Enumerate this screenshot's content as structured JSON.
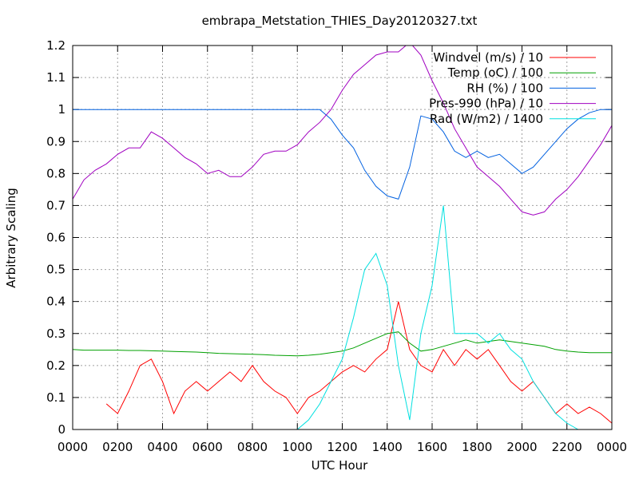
{
  "chart_data": {
    "type": "line",
    "title": "embrapa_Metstation_THIES_Day20120327.txt",
    "x_label": "UTC Hour",
    "y_label": "Arbitrary Scaling",
    "xlim": [
      0,
      24
    ],
    "ylim": [
      0,
      1.2
    ],
    "xticks": [
      {
        "value": 0,
        "label": "0000"
      },
      {
        "value": 2,
        "label": "0200"
      },
      {
        "value": 4,
        "label": "0400"
      },
      {
        "value": 6,
        "label": "0600"
      },
      {
        "value": 8,
        "label": "0800"
      },
      {
        "value": 10,
        "label": "1000"
      },
      {
        "value": 12,
        "label": "1200"
      },
      {
        "value": 14,
        "label": "1400"
      },
      {
        "value": 16,
        "label": "1600"
      },
      {
        "value": 18,
        "label": "1800"
      },
      {
        "value": 20,
        "label": "2000"
      },
      {
        "value": 22,
        "label": "2200"
      },
      {
        "value": 24,
        "label": "0000"
      }
    ],
    "yticks": [
      0,
      0.1,
      0.2,
      0.3,
      0.4,
      0.5,
      0.6,
      0.7,
      0.8,
      0.9,
      1,
      1.1,
      1.2
    ],
    "grid": true,
    "legend": "top-right",
    "x": [
      0,
      0.5,
      1,
      1.5,
      2,
      2.5,
      3,
      3.5,
      4,
      4.5,
      5,
      5.5,
      6,
      6.5,
      7,
      7.5,
      8,
      8.5,
      9,
      9.5,
      10,
      10.5,
      11,
      11.5,
      12,
      12.5,
      13,
      13.5,
      14,
      14.5,
      15,
      15.5,
      16,
      16.5,
      17,
      17.5,
      18,
      18.5,
      19,
      19.5,
      20,
      20.5,
      21,
      21.5,
      22,
      22.5,
      23,
      23.5,
      24
    ],
    "series": [
      {
        "name": "Windvel (m/s) / 10",
        "color": "#ff0000",
        "values": [
          null,
          null,
          null,
          0.08,
          0.05,
          0.12,
          0.2,
          0.22,
          0.15,
          0.05,
          0.12,
          0.15,
          0.12,
          0.15,
          0.18,
          0.15,
          0.2,
          0.15,
          0.12,
          0.1,
          0.05,
          0.1,
          0.12,
          0.15,
          0.18,
          0.2,
          0.18,
          0.22,
          0.25,
          0.4,
          0.25,
          0.2,
          0.18,
          0.25,
          0.2,
          0.25,
          0.22,
          0.25,
          0.2,
          0.15,
          0.12,
          0.15,
          0.1,
          0.05,
          0.08,
          0.05,
          0.07,
          0.05,
          0.02
        ]
      },
      {
        "name": "Temp (oC) / 100",
        "color": "#00a000",
        "values": [
          0.25,
          0.248,
          0.248,
          0.248,
          0.248,
          0.247,
          0.247,
          0.246,
          0.245,
          0.244,
          0.243,
          0.242,
          0.24,
          0.238,
          0.237,
          0.236,
          0.235,
          0.234,
          0.232,
          0.231,
          0.23,
          0.232,
          0.235,
          0.24,
          0.245,
          0.255,
          0.27,
          0.285,
          0.3,
          0.305,
          0.27,
          0.245,
          0.25,
          0.26,
          0.27,
          0.28,
          0.27,
          0.275,
          0.28,
          0.275,
          0.27,
          0.265,
          0.26,
          0.25,
          0.245,
          0.242,
          0.24,
          0.24,
          0.24
        ]
      },
      {
        "name": "RH (%) / 100",
        "color": "#0060e0",
        "values": [
          1,
          1,
          1,
          1,
          1,
          1,
          1,
          1,
          1,
          1,
          1,
          1,
          1,
          1,
          1,
          1,
          1,
          1,
          1,
          1,
          1,
          1,
          1,
          0.97,
          0.92,
          0.88,
          0.81,
          0.76,
          0.73,
          0.72,
          0.82,
          0.98,
          0.97,
          0.93,
          0.87,
          0.85,
          0.87,
          0.85,
          0.86,
          0.83,
          0.8,
          0.82,
          0.86,
          0.9,
          0.94,
          0.97,
          0.99,
          1,
          1
        ]
      },
      {
        "name": "Pres-990 (hPa) / 10",
        "color": "#a000c0",
        "values": [
          0.72,
          0.78,
          0.81,
          0.83,
          0.86,
          0.88,
          0.88,
          0.93,
          0.91,
          0.88,
          0.85,
          0.83,
          0.8,
          0.81,
          0.79,
          0.79,
          0.82,
          0.86,
          0.87,
          0.87,
          0.89,
          0.93,
          0.96,
          1,
          1.06,
          1.11,
          1.14,
          1.17,
          1.18,
          1.18,
          1.21,
          1.17,
          1.09,
          1.02,
          0.94,
          0.88,
          0.82,
          0.79,
          0.76,
          0.72,
          0.68,
          0.67,
          0.68,
          0.72,
          0.75,
          0.79,
          0.84,
          0.89,
          0.95
        ]
      },
      {
        "name": "Rad (W/m2) / 1400",
        "color": "#00e0e0",
        "values": [
          0,
          0,
          0,
          0,
          0,
          0,
          0,
          0,
          0,
          0,
          0,
          0,
          0,
          0,
          0,
          0,
          0,
          0,
          0,
          0,
          0,
          0.03,
          0.08,
          0.15,
          0.22,
          0.35,
          0.5,
          0.55,
          0.45,
          0.2,
          0.03,
          0.3,
          0.45,
          0.7,
          0.3,
          0.3,
          0.3,
          0.27,
          0.3,
          0.25,
          0.22,
          0.15,
          0.1,
          0.05,
          0.02,
          0,
          0,
          0,
          0
        ]
      }
    ]
  }
}
